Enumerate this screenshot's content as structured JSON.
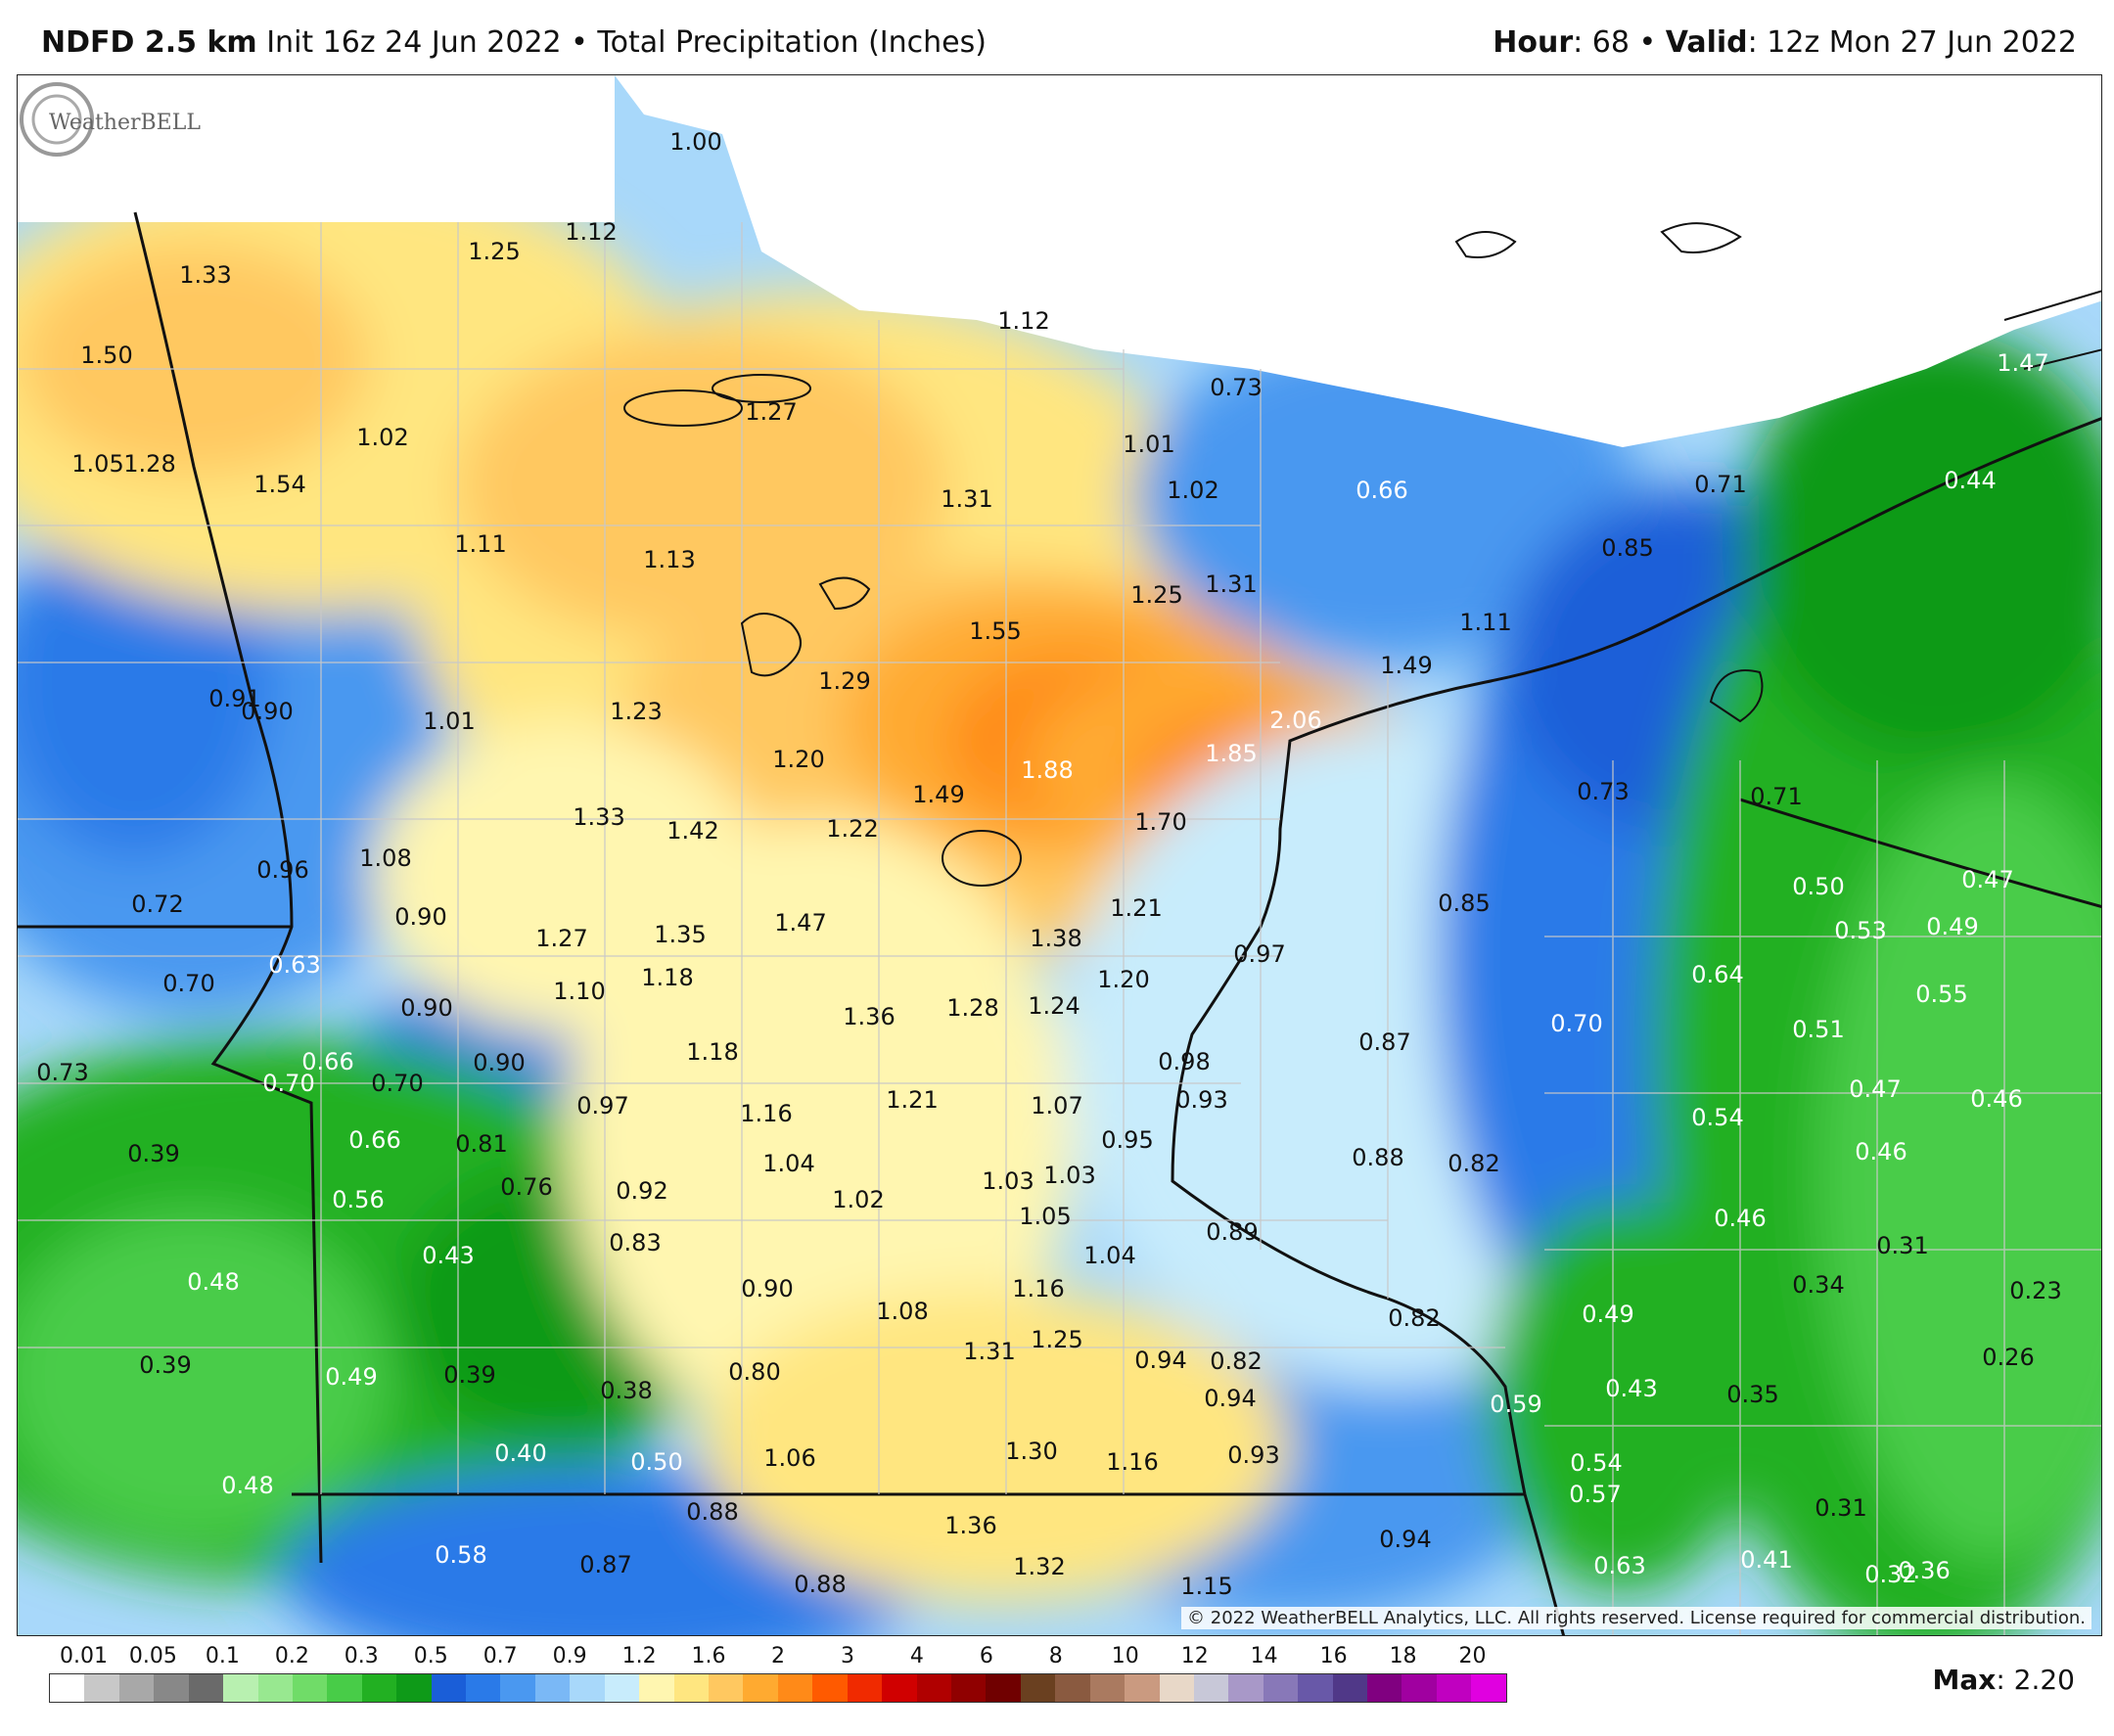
{
  "header": {
    "model": "NDFD 2.5 km",
    "init": "Init 16z 24 Jun 2022",
    "separator": "•",
    "product": "Total Precipitation (Inches)",
    "hour_label": "Hour",
    "hour_value": ": 68",
    "valid_label": "Valid",
    "valid_value": ": 12z Mon 27 Jun 2022"
  },
  "map": {
    "region": "Minnesota and surrounding areas",
    "values": [
      {
        "v": "1.00",
        "w": false
      },
      {
        "v": "1.12",
        "w": false
      },
      {
        "v": "1.33",
        "w": false
      },
      {
        "v": "1.25",
        "w": false
      },
      {
        "v": "1.50",
        "w": false
      },
      {
        "v": "1.12",
        "w": false
      },
      {
        "v": "0.73",
        "w": false
      },
      {
        "v": "1.47",
        "w": true
      },
      {
        "v": "1.27",
        "w": false
      },
      {
        "v": "1.02",
        "w": false
      },
      {
        "v": "1.05",
        "w": false
      },
      {
        "v": "1.28",
        "w": false
      },
      {
        "v": "1.01",
        "w": false
      },
      {
        "v": "1.54",
        "w": false
      },
      {
        "v": "1.31",
        "w": false
      },
      {
        "v": "1.02",
        "w": false
      },
      {
        "v": "0.66",
        "w": true
      },
      {
        "v": "0.71",
        "w": false
      },
      {
        "v": "0.44",
        "w": true
      },
      {
        "v": "1.11",
        "w": false
      },
      {
        "v": "1.13",
        "w": false
      },
      {
        "v": "0.85",
        "w": false
      },
      {
        "v": "1.25",
        "w": false
      },
      {
        "v": "1.31",
        "w": false
      },
      {
        "v": "1.55",
        "w": false
      },
      {
        "v": "1.11",
        "w": false
      },
      {
        "v": "1.49",
        "w": false
      },
      {
        "v": "1.29",
        "w": false
      },
      {
        "v": "0.91",
        "w": false
      },
      {
        "v": "0.90",
        "w": false
      },
      {
        "v": "1.01",
        "w": false
      },
      {
        "v": "1.23",
        "w": false
      },
      {
        "v": "2.06",
        "w": true
      },
      {
        "v": "1.20",
        "w": false
      },
      {
        "v": "1.85",
        "w": true
      },
      {
        "v": "1.88",
        "w": true
      },
      {
        "v": "1.49",
        "w": false
      },
      {
        "v": "0.73",
        "w": false
      },
      {
        "v": "0.71",
        "w": false
      },
      {
        "v": "1.33",
        "w": false
      },
      {
        "v": "1.42",
        "w": false
      },
      {
        "v": "1.22",
        "w": false
      },
      {
        "v": "1.70",
        "w": false
      },
      {
        "v": "1.08",
        "w": false
      },
      {
        "v": "0.96",
        "w": false
      },
      {
        "v": "0.72",
        "w": false
      },
      {
        "v": "0.50",
        "w": true
      },
      {
        "v": "0.47",
        "w": true
      },
      {
        "v": "1.21",
        "w": false
      },
      {
        "v": "0.85",
        "w": false
      },
      {
        "v": "0.53",
        "w": true
      },
      {
        "v": "0.49",
        "w": true
      },
      {
        "v": "0.90",
        "w": false
      },
      {
        "v": "1.27",
        "w": false
      },
      {
        "v": "1.35",
        "w": false
      },
      {
        "v": "1.47",
        "w": false
      },
      {
        "v": "1.38",
        "w": false
      },
      {
        "v": "0.97",
        "w": false
      },
      {
        "v": "0.63",
        "w": true
      },
      {
        "v": "0.64",
        "w": true
      },
      {
        "v": "0.55",
        "w": true
      },
      {
        "v": "0.70",
        "w": false
      },
      {
        "v": "1.10",
        "w": false
      },
      {
        "v": "1.18",
        "w": false
      },
      {
        "v": "1.20",
        "w": false
      },
      {
        "v": "0.90",
        "w": false
      },
      {
        "v": "1.36",
        "w": false
      },
      {
        "v": "1.28",
        "w": false
      },
      {
        "v": "1.24",
        "w": false
      },
      {
        "v": "0.70",
        "w": true
      },
      {
        "v": "0.51",
        "w": true
      },
      {
        "v": "0.87",
        "w": false
      },
      {
        "v": "0.73",
        "w": false
      },
      {
        "v": "1.18",
        "w": false
      },
      {
        "v": "0.66",
        "w": true
      },
      {
        "v": "0.90",
        "w": false
      },
      {
        "v": "0.98",
        "w": false
      },
      {
        "v": "0.70",
        "w": true
      },
      {
        "v": "0.70",
        "w": false
      },
      {
        "v": "0.47",
        "w": true
      },
      {
        "v": "0.46",
        "w": true
      },
      {
        "v": "0.93",
        "w": false
      },
      {
        "v": "0.97",
        "w": false
      },
      {
        "v": "1.21",
        "w": false
      },
      {
        "v": "1.07",
        "w": false
      },
      {
        "v": "1.16",
        "w": false
      },
      {
        "v": "0.54",
        "w": true
      },
      {
        "v": "0.66",
        "w": true
      },
      {
        "v": "0.81",
        "w": false
      },
      {
        "v": "0.95",
        "w": false
      },
      {
        "v": "0.39",
        "w": false
      },
      {
        "v": "0.46",
        "w": true
      },
      {
        "v": "0.88",
        "w": false
      },
      {
        "v": "0.82",
        "w": false
      },
      {
        "v": "1.04",
        "w": false
      },
      {
        "v": "1.03",
        "w": false
      },
      {
        "v": "1.03",
        "w": false
      },
      {
        "v": "0.76",
        "w": false
      },
      {
        "v": "0.92",
        "w": false
      },
      {
        "v": "1.02",
        "w": false
      },
      {
        "v": "0.56",
        "w": true
      },
      {
        "v": "1.05",
        "w": false
      },
      {
        "v": "0.46",
        "w": true
      },
      {
        "v": "0.89",
        "w": false
      },
      {
        "v": "0.83",
        "w": false
      },
      {
        "v": "0.31",
        "w": false
      },
      {
        "v": "0.43",
        "w": true
      },
      {
        "v": "1.04",
        "w": false
      },
      {
        "v": "0.48",
        "w": true
      },
      {
        "v": "0.90",
        "w": false
      },
      {
        "v": "1.16",
        "w": false
      },
      {
        "v": "0.34",
        "w": false
      },
      {
        "v": "0.23",
        "w": false
      },
      {
        "v": "0.49",
        "w": true
      },
      {
        "v": "1.08",
        "w": false
      },
      {
        "v": "0.82",
        "w": false
      },
      {
        "v": "1.25",
        "w": false
      },
      {
        "v": "0.26",
        "w": false
      },
      {
        "v": "1.31",
        "w": false
      },
      {
        "v": "0.39",
        "w": false
      },
      {
        "v": "0.94",
        "w": false
      },
      {
        "v": "0.82",
        "w": false
      },
      {
        "v": "0.49",
        "w": true
      },
      {
        "v": "0.39",
        "w": false
      },
      {
        "v": "0.80",
        "w": false
      },
      {
        "v": "0.38",
        "w": false
      },
      {
        "v": "0.43",
        "w": true
      },
      {
        "v": "0.35",
        "w": false
      },
      {
        "v": "0.94",
        "w": false
      },
      {
        "v": "0.59",
        "w": true
      },
      {
        "v": "1.30",
        "w": false
      },
      {
        "v": "0.40",
        "w": true
      },
      {
        "v": "1.06",
        "w": false
      },
      {
        "v": "0.50",
        "w": true
      },
      {
        "v": "1.16",
        "w": false
      },
      {
        "v": "0.93",
        "w": false
      },
      {
        "v": "0.54",
        "w": true
      },
      {
        "v": "0.48",
        "w": true
      },
      {
        "v": "0.57",
        "w": true
      },
      {
        "v": "0.31",
        "w": false
      },
      {
        "v": "0.88",
        "w": false
      },
      {
        "v": "1.36",
        "w": false
      },
      {
        "v": "0.94",
        "w": false
      },
      {
        "v": "0.58",
        "w": true
      },
      {
        "v": "0.87",
        "w": false
      },
      {
        "v": "1.32",
        "w": false
      },
      {
        "v": "0.63",
        "w": true
      },
      {
        "v": "0.41",
        "w": true
      },
      {
        "v": "0.88",
        "w": false
      },
      {
        "v": "1.15",
        "w": false
      },
      {
        "v": "0.32",
        "w": true
      },
      {
        "v": "0.36",
        "w": true
      }
    ],
    "watermark": "WeatherBELL",
    "copyright": "© 2022 WeatherBELL Analytics, LLC. All rights reserved. License required for commercial distribution."
  },
  "legend": {
    "ticks": [
      "0.01",
      "0.05",
      "0.1",
      "0.2",
      "0.3",
      "0.5",
      "0.7",
      "0.9",
      "1.2",
      "1.6",
      "2",
      "3",
      "4",
      "6",
      "8",
      "10",
      "12",
      "14",
      "16",
      "18",
      "20"
    ],
    "colors": [
      "#ffffff",
      "#c8c8c8",
      "#a8a8a8",
      "#888888",
      "#6a6a6a",
      "#b8f0b0",
      "#98e890",
      "#70dc68",
      "#48cc48",
      "#22b022",
      "#0e9a18",
      "#1a5ed8",
      "#2a7ae8",
      "#4a98f0",
      "#7ab8f6",
      "#a8d8fa",
      "#c8ecfc",
      "#fff6b0",
      "#ffe680",
      "#ffc860",
      "#ffaa30",
      "#ff8a18",
      "#ff5a00",
      "#f02a00",
      "#d00000",
      "#b00000",
      "#900000",
      "#700000",
      "#6a4020",
      "#8a5a40",
      "#aa7a60",
      "#ca9a80",
      "#e8d8c8",
      "#c8c8d8",
      "#a898c8",
      "#8878b8",
      "#6858a8",
      "#503888",
      "#800080",
      "#a000a0",
      "#c000c0",
      "#e000e0"
    ],
    "max_label": "Max",
    "max_value": ": 2.20"
  }
}
